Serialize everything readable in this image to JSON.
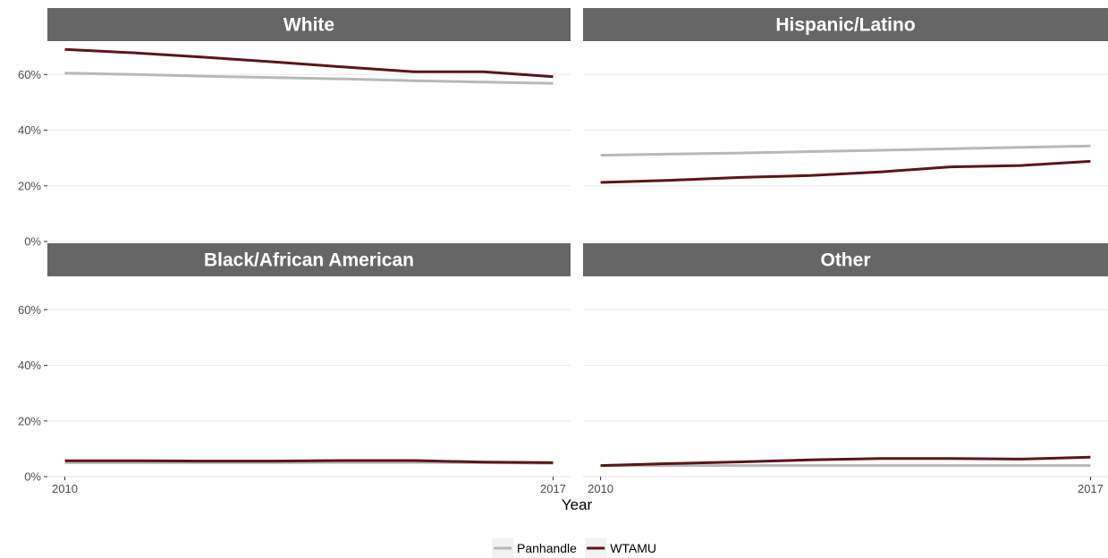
{
  "chart_data": {
    "type": "line",
    "xlabel": "Year",
    "x_ticks": [
      "2010",
      "2017"
    ],
    "y_ticks": [
      "0%",
      "20%",
      "40%",
      "60%"
    ],
    "ylim": [
      0,
      0.72
    ],
    "xlim": [
      2009.75,
      2017.25
    ],
    "grid": true,
    "legend_position": "bottom",
    "colors": {
      "Panhandle": "#b8b8b8",
      "WTAMU": "#5c1518",
      "strip": "#666666",
      "grid": "#ebebeb"
    },
    "x": [
      2010,
      2011,
      2012,
      2013,
      2014,
      2015,
      2016,
      2017
    ],
    "panels": [
      {
        "title": "White",
        "series": [
          {
            "name": "Panhandle",
            "values": [
              0.605,
              0.6,
              0.594,
              0.589,
              0.584,
              0.578,
              0.573,
              0.568
            ]
          },
          {
            "name": "WTAMU",
            "values": [
              0.69,
              0.678,
              0.662,
              0.645,
              0.627,
              0.61,
              0.61,
              0.592
            ]
          }
        ]
      },
      {
        "title": "Hispanic/Latino",
        "series": [
          {
            "name": "Panhandle",
            "values": [
              0.31,
              0.314,
              0.318,
              0.323,
              0.328,
              0.333,
              0.338,
              0.343
            ]
          },
          {
            "name": "WTAMU",
            "values": [
              0.212,
              0.22,
              0.23,
              0.237,
              0.25,
              0.268,
              0.273,
              0.288
            ]
          }
        ]
      },
      {
        "title": "Black/African American",
        "series": [
          {
            "name": "Panhandle",
            "values": [
              0.05,
              0.05,
              0.05,
              0.05,
              0.051,
              0.051,
              0.05,
              0.048
            ]
          },
          {
            "name": "WTAMU",
            "values": [
              0.057,
              0.057,
              0.056,
              0.056,
              0.058,
              0.058,
              0.052,
              0.05
            ]
          }
        ]
      },
      {
        "title": "Other",
        "series": [
          {
            "name": "Panhandle",
            "values": [
              0.04,
              0.04,
              0.04,
              0.04,
              0.04,
              0.04,
              0.04,
              0.04
            ]
          },
          {
            "name": "WTAMU",
            "values": [
              0.04,
              0.047,
              0.053,
              0.06,
              0.065,
              0.065,
              0.063,
              0.07
            ]
          }
        ]
      }
    ],
    "legend": [
      {
        "name": "Panhandle",
        "label": "Panhandle"
      },
      {
        "name": "WTAMU",
        "label": "WTAMU"
      }
    ]
  }
}
